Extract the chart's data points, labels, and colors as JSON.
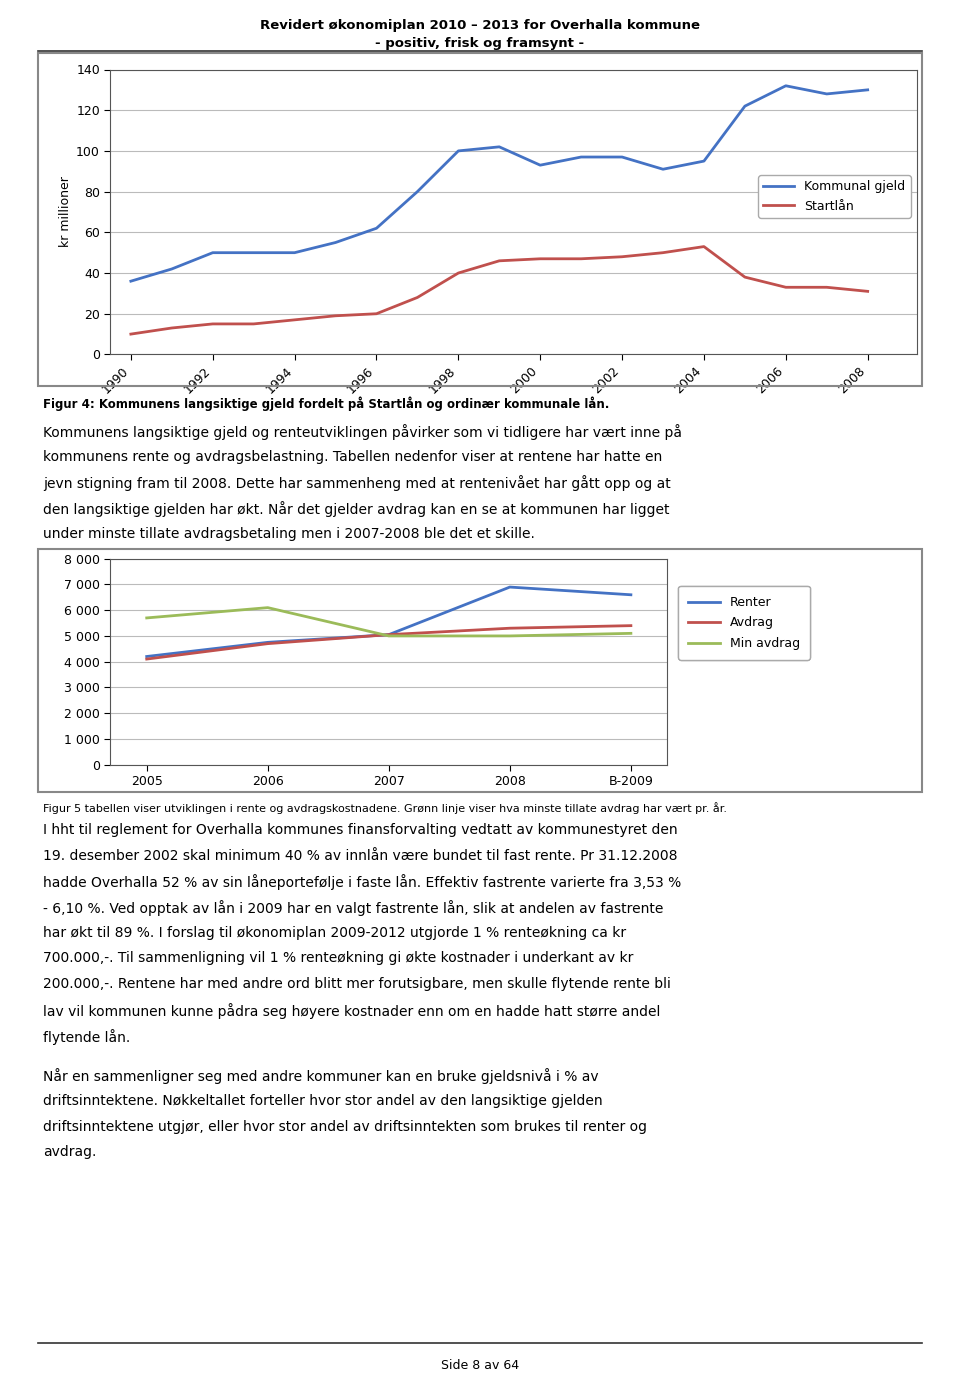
{
  "page_title_line1": "Revidert økonomiplan 2010 – 2013 for Overhalla kommune",
  "page_title_line2": "- positiv, frisk og framsynt -",
  "chart1": {
    "years": [
      1990,
      1991,
      1992,
      1993,
      1994,
      1995,
      1996,
      1997,
      1998,
      1999,
      2000,
      2001,
      2002,
      2003,
      2004,
      2005,
      2006,
      2007,
      2008
    ],
    "kommunal_gjeld": [
      36,
      42,
      50,
      50,
      50,
      55,
      62,
      80,
      100,
      102,
      93,
      97,
      97,
      91,
      95,
      122,
      132,
      128,
      130
    ],
    "startlan": [
      10,
      13,
      15,
      15,
      17,
      19,
      20,
      28,
      40,
      46,
      47,
      47,
      48,
      50,
      53,
      38,
      33,
      33,
      31
    ],
    "ylabel": "kr millioner",
    "ylim": [
      0,
      140
    ],
    "yticks": [
      0,
      20,
      40,
      60,
      80,
      100,
      120,
      140
    ],
    "xtick_labels": [
      "1990",
      "1992",
      "1994",
      "1996",
      "1998",
      "2000",
      "2002",
      "2004",
      "2006",
      "2008"
    ],
    "xtick_positions": [
      1990,
      1992,
      1994,
      1996,
      1998,
      2000,
      2002,
      2004,
      2006,
      2008
    ],
    "line1_color": "#4472C4",
    "line2_color": "#C0504D",
    "line1_label": "Kommunal gjeld",
    "line2_label": "Startlån"
  },
  "fig4_caption": "Figur 4: Kommunens langsiktige gjeld fordelt på Startlån og ordinær kommunale lån.",
  "chart2": {
    "categories": [
      "2005",
      "2006",
      "2007",
      "2008",
      "B-2009"
    ],
    "renter": [
      4200,
      4750,
      5050,
      6900,
      6600
    ],
    "avdrag": [
      4100,
      4700,
      5050,
      5300,
      5400
    ],
    "min_avdrag": [
      5700,
      6100,
      5000,
      5000,
      5100
    ],
    "ylim": [
      0,
      8000
    ],
    "yticks": [
      0,
      1000,
      2000,
      3000,
      4000,
      5000,
      6000,
      7000,
      8000
    ],
    "line1_color": "#4472C4",
    "line2_color": "#C0504D",
    "line3_color": "#9BBB59",
    "line1_label": "Renter",
    "line2_label": "Avdrag",
    "line3_label": "Min avdrag"
  },
  "fig5_caption": "Figur 5 tabellen viser utviklingen i rente og avdragskostnadene. Grønn linje viser hva minste tillate avdrag har vært pr. år.",
  "footer": "Side 8 av 64",
  "bg_color": "#ffffff",
  "text_color": "#000000",
  "border_color": "#888888",
  "grid_color": "#bbbbbb",
  "para1_lines": [
    "Kommunens langsiktige gjeld og renteutviklingen påvirker som vi tidligere har vært inne på",
    "kommunens rente og avdragsbelastning. Tabellen nedenfor viser at rentene har hatte en",
    "jevn stigning fram til 2008. Dette har sammenheng med at rentenivået har gått opp og at",
    "den langsiktige gjelden har økt. Når det gjelder avdrag kan en se at kommunen har ligget",
    "under minste tillate avdragsbetaling men i 2007-2008 ble det et skille."
  ],
  "para2_lines": [
    "I hht til reglement for Overhalla kommunes finansforvalting vedtatt av kommunestyret den",
    "19. desember 2002 skal minimum 40 % av innlån være bundet til fast rente. Pr 31.12.2008",
    "hadde Overhalla 52 % av sin låneportefølje i faste lån. Effektiv fastrente varierte fra 3,53 %",
    "- 6,10 %. Ved opptak av lån i 2009 har en valgt fastrente lån, slik at andelen av fastrente",
    "har økt til 89 %. I forslag til økonomiplan 2009-2012 utgjorde 1 % renteøkning ca kr",
    "700.000,-. Til sammenligning vil 1 % renteøkning gi økte kostnader i underkant av kr",
    "200.000,-. Rentene har med andre ord blitt mer forutsigbare, men skulle flytende rente bli",
    "lav vil kommunen kunne pådra seg høyere kostnader enn om en hadde hatt større andel",
    "flytende lån."
  ],
  "para3_lines": [
    "Når en sammenligner seg med andre kommuner kan en bruke gjeldsnivå i % av",
    "driftsinntektene. Nøkkeltallet forteller hvor stor andel av den langsiktige gjelden",
    "driftsinntektene utgjør, eller hvor stor andel av driftsinntekten som brukes til renter og",
    "avdrag."
  ]
}
